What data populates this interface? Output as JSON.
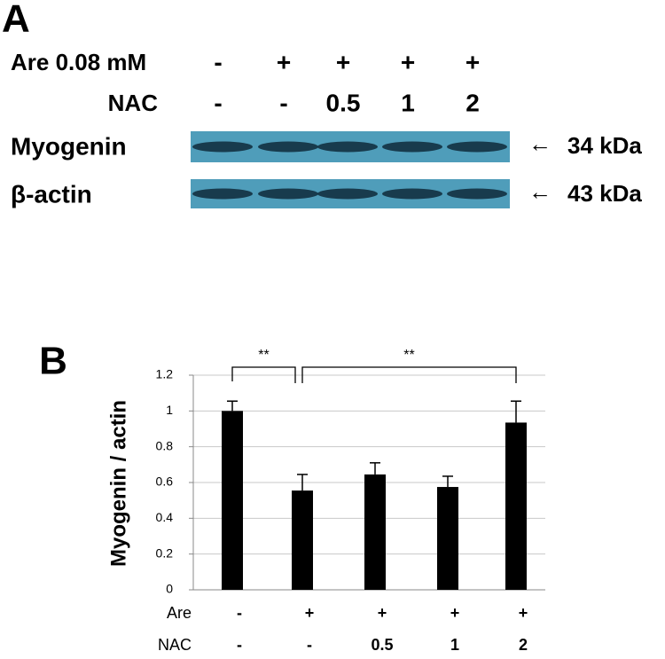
{
  "panel_a": {
    "label": "A",
    "rows": [
      {
        "label": "Are 0.08 mM",
        "values": [
          "-",
          "+",
          "+",
          "+",
          "+"
        ]
      },
      {
        "label": "NAC",
        "values": [
          "-",
          "-",
          "0.5",
          "1",
          "2"
        ]
      }
    ],
    "bands": [
      {
        "label": "Myogenin",
        "size": "34 kDa"
      },
      {
        "label": "β-actin",
        "size": "43 kDa"
      }
    ]
  },
  "chart_data": {
    "type": "bar",
    "panel_label": "B",
    "ylabel": "Myogenin  / actin",
    "category_rows": [
      {
        "name": "Are",
        "labels": [
          "-",
          "+",
          "+",
          "+",
          "+"
        ]
      },
      {
        "name": "NAC",
        "labels": [
          "-",
          "-",
          "0.5",
          "1",
          "2"
        ]
      }
    ],
    "values": [
      1,
      0.555,
      0.645,
      0.575,
      0.935
    ],
    "errors": [
      0.055,
      0.09,
      0.065,
      0.06,
      0.12
    ],
    "color": "#000000",
    "ylim": [
      0,
      1.2
    ],
    "yticks": [
      0,
      0.2,
      0.4,
      0.6,
      0.8,
      1,
      1.2
    ],
    "grid": true,
    "annotations": [
      "**",
      "**"
    ]
  }
}
